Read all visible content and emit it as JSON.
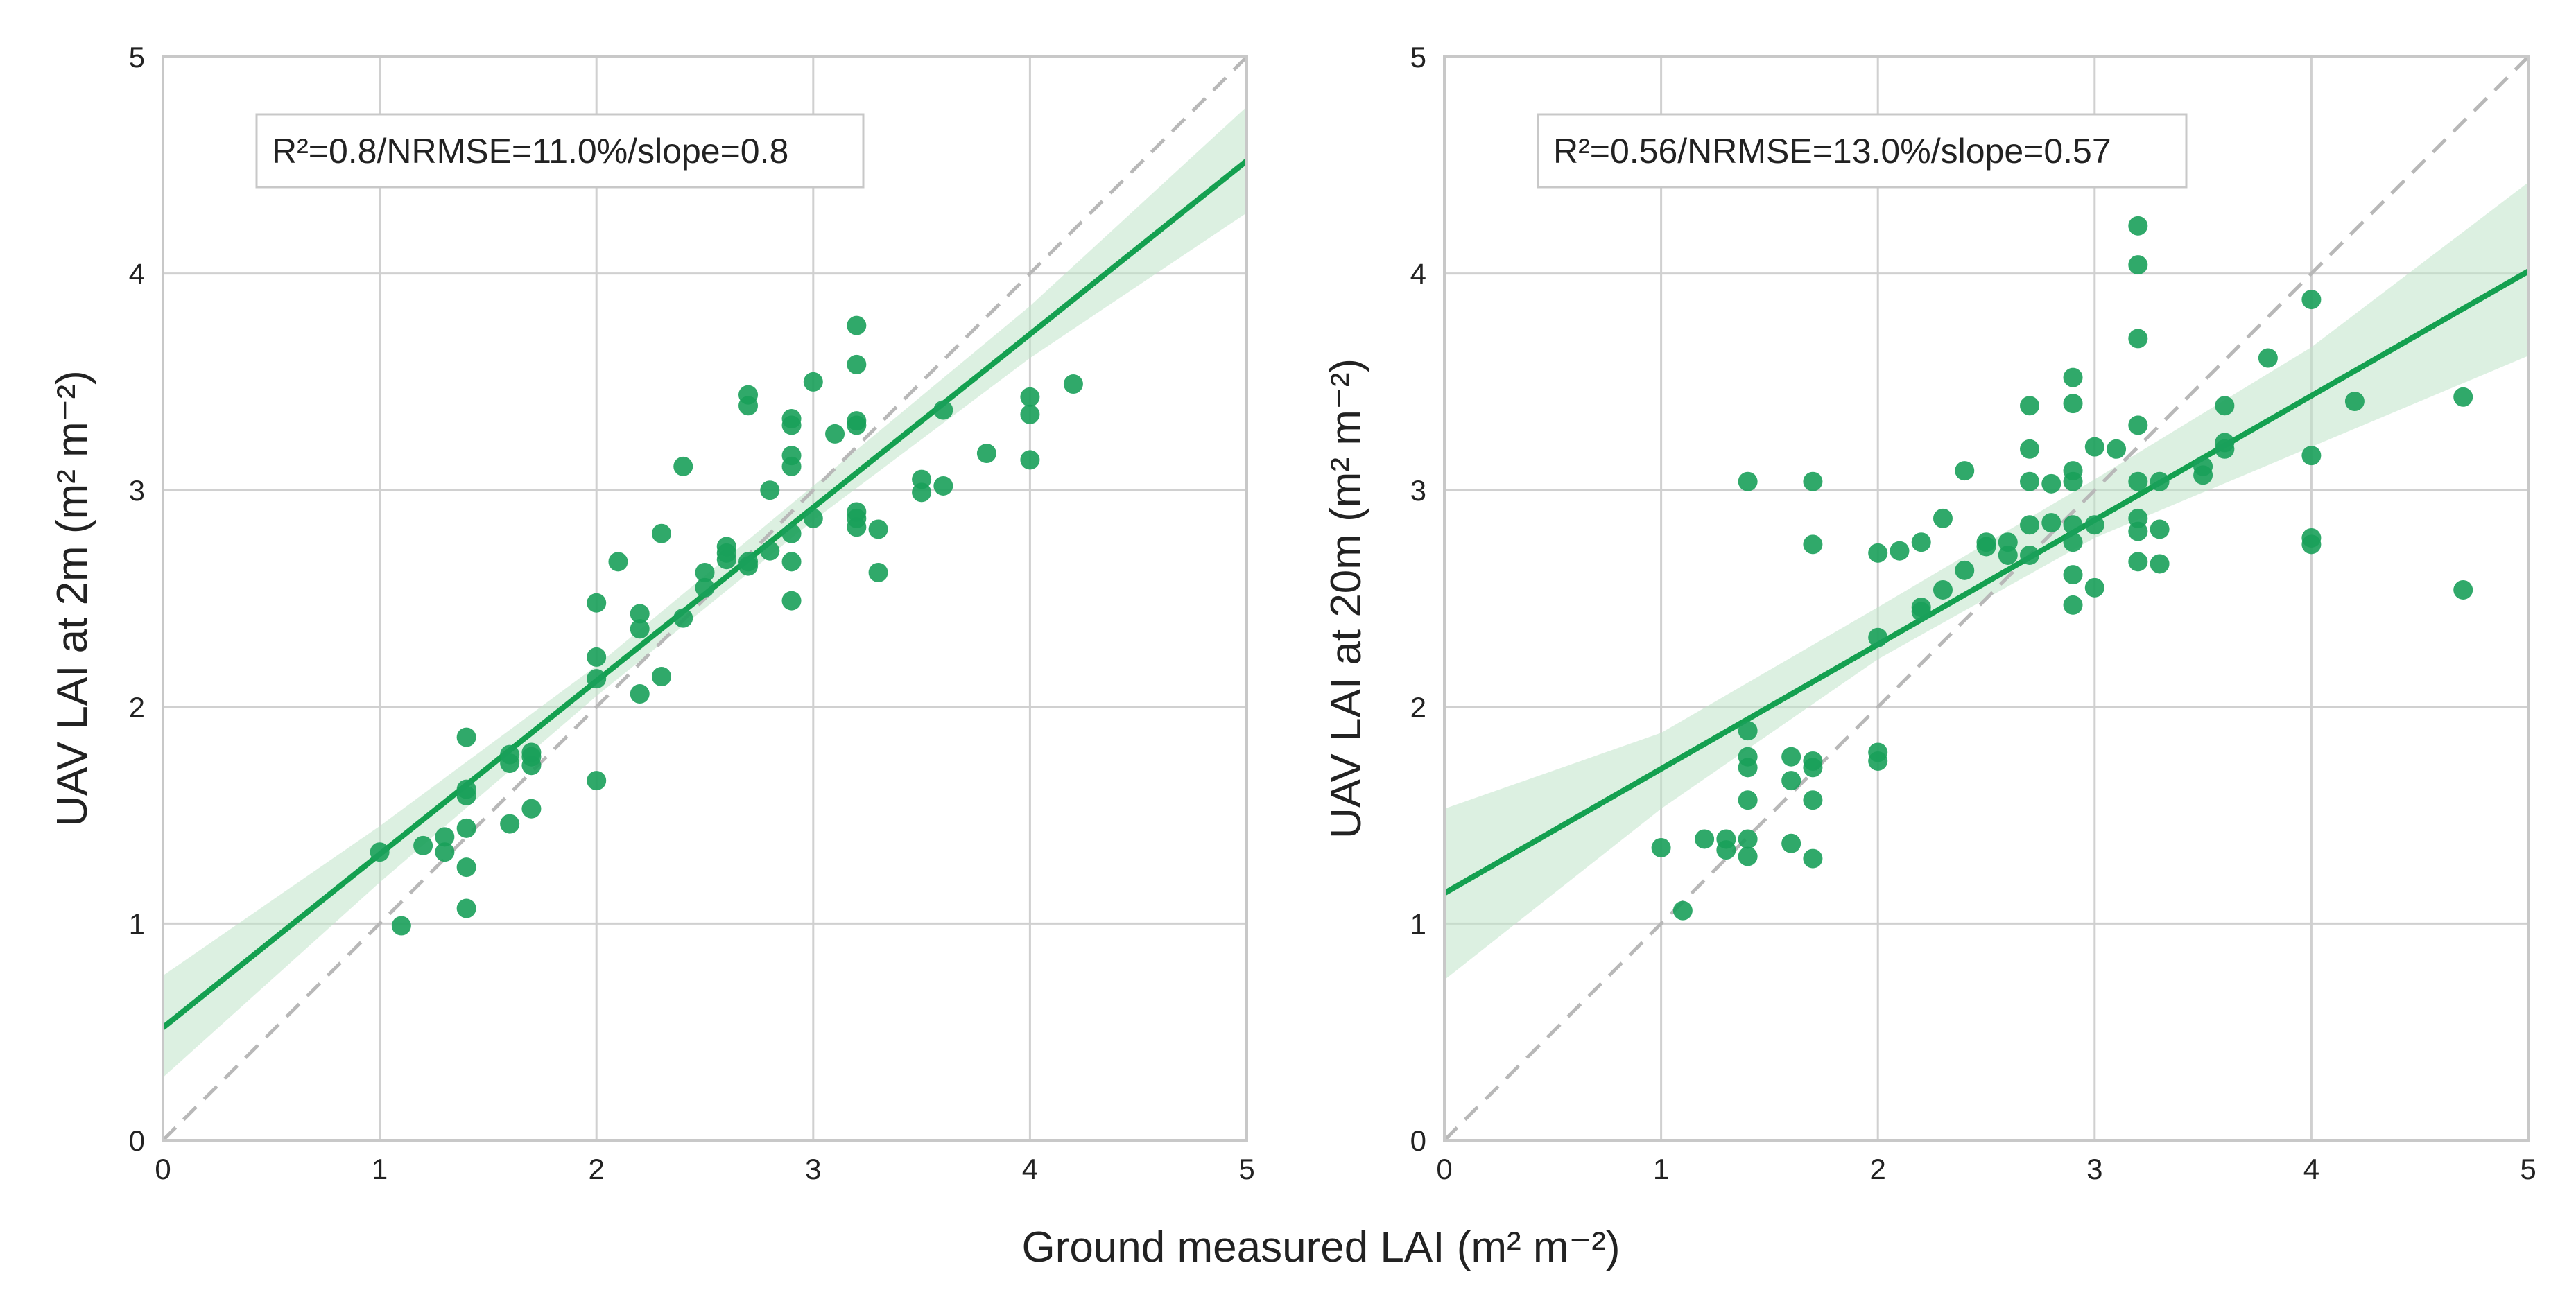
{
  "colors": {
    "points": "#1aa05a",
    "fit_line": "#14a050",
    "band": "#bfe3c9",
    "identity": "#b8b8b8",
    "grid": "#d0d0d0",
    "frame": "#c8c8c8"
  },
  "shared_xlabel": "Ground measured LAI (m² m⁻²)",
  "chart_data": [
    {
      "type": "scatter",
      "title": "",
      "ylabel": "UAV LAI at 2m (m² m⁻²)",
      "annotation": "R²=0.8/NRMSE=11.0%/slope=0.8",
      "xlim": [
        0,
        5
      ],
      "ylim": [
        0,
        5
      ],
      "xticks": [
        "0",
        "1",
        "2",
        "3",
        "4",
        "5"
      ],
      "yticks": [
        "0",
        "1",
        "2",
        "3",
        "4",
        "5"
      ],
      "grid": true,
      "identity_line": {
        "from": [
          0,
          0
        ],
        "to": [
          5,
          5
        ]
      },
      "fit": {
        "intercept": 0.52,
        "slope": 0.8
      },
      "band": {
        "x": [
          0,
          1,
          2,
          3,
          4,
          5
        ],
        "lower": [
          0.29,
          1.19,
          2.05,
          2.86,
          3.61,
          4.28
        ],
        "upper": [
          0.76,
          1.45,
          2.19,
          3.02,
          3.85,
          4.77
        ]
      },
      "points": [
        [
          1.0,
          1.33
        ],
        [
          1.1,
          0.99
        ],
        [
          1.2,
          1.36
        ],
        [
          1.3,
          1.33
        ],
        [
          1.3,
          1.4
        ],
        [
          1.4,
          1.07
        ],
        [
          1.4,
          1.26
        ],
        [
          1.4,
          1.44
        ],
        [
          1.4,
          1.59
        ],
        [
          1.4,
          1.62
        ],
        [
          1.4,
          1.86
        ],
        [
          1.6,
          1.46
        ],
        [
          1.6,
          1.74
        ],
        [
          1.6,
          1.78
        ],
        [
          1.7,
          1.53
        ],
        [
          1.7,
          1.73
        ],
        [
          1.7,
          1.77
        ],
        [
          1.7,
          1.79
        ],
        [
          2.0,
          1.66
        ],
        [
          2.0,
          2.13
        ],
        [
          2.0,
          2.23
        ],
        [
          2.0,
          2.48
        ],
        [
          2.1,
          2.67
        ],
        [
          2.2,
          2.06
        ],
        [
          2.2,
          2.36
        ],
        [
          2.2,
          2.43
        ],
        [
          2.3,
          2.14
        ],
        [
          2.3,
          2.8
        ],
        [
          2.4,
          2.41
        ],
        [
          2.4,
          3.11
        ],
        [
          2.5,
          2.55
        ],
        [
          2.5,
          2.62
        ],
        [
          2.6,
          2.68
        ],
        [
          2.6,
          2.71
        ],
        [
          2.6,
          2.74
        ],
        [
          2.7,
          2.65
        ],
        [
          2.7,
          2.67
        ],
        [
          2.7,
          3.39
        ],
        [
          2.7,
          3.44
        ],
        [
          2.8,
          2.72
        ],
        [
          2.8,
          3.0
        ],
        [
          2.9,
          2.49
        ],
        [
          2.9,
          2.67
        ],
        [
          2.9,
          2.8
        ],
        [
          2.9,
          3.11
        ],
        [
          2.9,
          3.16
        ],
        [
          2.9,
          3.3
        ],
        [
          2.9,
          3.33
        ],
        [
          3.0,
          2.87
        ],
        [
          3.0,
          3.5
        ],
        [
          3.1,
          3.26
        ],
        [
          3.2,
          2.83
        ],
        [
          3.2,
          2.87
        ],
        [
          3.2,
          2.9
        ],
        [
          3.2,
          3.3
        ],
        [
          3.2,
          3.32
        ],
        [
          3.2,
          3.58
        ],
        [
          3.2,
          3.76
        ],
        [
          3.3,
          2.62
        ],
        [
          3.3,
          2.82
        ],
        [
          3.5,
          2.99
        ],
        [
          3.5,
          3.05
        ],
        [
          3.6,
          3.02
        ],
        [
          3.6,
          3.37
        ],
        [
          3.8,
          3.17
        ],
        [
          4.0,
          3.14
        ],
        [
          4.0,
          3.35
        ],
        [
          4.0,
          3.43
        ],
        [
          4.2,
          3.49
        ]
      ]
    },
    {
      "type": "scatter",
      "title": "",
      "ylabel": "UAV LAI at 20m (m² m⁻²)",
      "annotation": "R²=0.56/NRMSE=13.0%/slope=0.57",
      "xlim": [
        0,
        5
      ],
      "ylim": [
        0,
        5
      ],
      "xticks": [
        "0",
        "1",
        "2",
        "3",
        "4",
        "5"
      ],
      "yticks": [
        "0",
        "1",
        "2",
        "3",
        "4",
        "5"
      ],
      "grid": true,
      "identity_line": {
        "from": [
          0,
          0
        ],
        "to": [
          5,
          5
        ]
      },
      "fit": {
        "intercept": 1.14,
        "slope": 0.574
      },
      "band": {
        "x": [
          0,
          1,
          2,
          3,
          4,
          5
        ],
        "lower": [
          0.74,
          1.53,
          2.22,
          2.78,
          3.2,
          3.62
        ],
        "upper": [
          1.53,
          1.88,
          2.46,
          3.05,
          3.66,
          4.42
        ]
      },
      "points": [
        [
          1.0,
          1.35
        ],
        [
          1.1,
          1.06
        ],
        [
          1.2,
          1.39
        ],
        [
          1.3,
          1.34
        ],
        [
          1.3,
          1.39
        ],
        [
          1.4,
          1.31
        ],
        [
          1.4,
          1.39
        ],
        [
          1.4,
          1.57
        ],
        [
          1.4,
          1.72
        ],
        [
          1.4,
          1.77
        ],
        [
          1.4,
          1.89
        ],
        [
          1.4,
          3.04
        ],
        [
          1.6,
          1.37
        ],
        [
          1.6,
          1.66
        ],
        [
          1.6,
          1.77
        ],
        [
          1.7,
          1.3
        ],
        [
          1.7,
          1.57
        ],
        [
          1.7,
          1.72
        ],
        [
          1.7,
          1.75
        ],
        [
          1.7,
          2.75
        ],
        [
          1.7,
          3.04
        ],
        [
          2.0,
          1.75
        ],
        [
          2.0,
          1.79
        ],
        [
          2.0,
          2.32
        ],
        [
          2.0,
          2.71
        ],
        [
          2.1,
          2.72
        ],
        [
          2.2,
          2.44
        ],
        [
          2.2,
          2.46
        ],
        [
          2.2,
          2.76
        ],
        [
          2.3,
          2.54
        ],
        [
          2.3,
          2.87
        ],
        [
          2.4,
          2.63
        ],
        [
          2.4,
          3.09
        ],
        [
          2.5,
          2.74
        ],
        [
          2.5,
          2.76
        ],
        [
          2.6,
          2.7
        ],
        [
          2.6,
          2.76
        ],
        [
          2.7,
          2.7
        ],
        [
          2.7,
          2.84
        ],
        [
          2.7,
          3.04
        ],
        [
          2.7,
          3.19
        ],
        [
          2.7,
          3.39
        ],
        [
          2.8,
          2.85
        ],
        [
          2.8,
          3.03
        ],
        [
          2.9,
          2.47
        ],
        [
          2.9,
          2.61
        ],
        [
          2.9,
          2.76
        ],
        [
          2.9,
          2.84
        ],
        [
          2.9,
          3.04
        ],
        [
          2.9,
          3.09
        ],
        [
          2.9,
          3.4
        ],
        [
          2.9,
          3.52
        ],
        [
          3.0,
          2.55
        ],
        [
          3.0,
          2.84
        ],
        [
          3.0,
          3.2
        ],
        [
          3.1,
          3.19
        ],
        [
          3.2,
          2.67
        ],
        [
          3.2,
          2.81
        ],
        [
          3.2,
          2.87
        ],
        [
          3.2,
          3.04
        ],
        [
          3.2,
          3.3
        ],
        [
          3.2,
          3.7
        ],
        [
          3.2,
          4.04
        ],
        [
          3.2,
          4.22
        ],
        [
          3.3,
          2.66
        ],
        [
          3.3,
          2.82
        ],
        [
          3.3,
          3.04
        ],
        [
          3.5,
          3.07
        ],
        [
          3.5,
          3.11
        ],
        [
          3.6,
          3.19
        ],
        [
          3.6,
          3.22
        ],
        [
          3.6,
          3.39
        ],
        [
          3.8,
          3.61
        ],
        [
          4.0,
          2.75
        ],
        [
          4.0,
          2.78
        ],
        [
          4.0,
          3.16
        ],
        [
          4.0,
          3.88
        ],
        [
          4.2,
          3.41
        ],
        [
          4.7,
          2.54
        ],
        [
          4.7,
          3.43
        ]
      ]
    }
  ]
}
